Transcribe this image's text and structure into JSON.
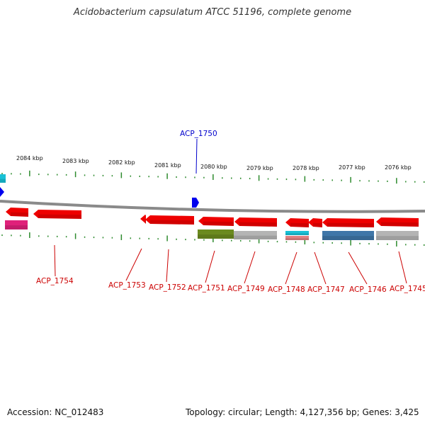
{
  "title": "Acidobacterium capsulatum ATCC 51196, complete genome",
  "footer": {
    "accession": "Accession: NC_012483",
    "summary": "Topology: circular; Length: 4,127,356 bp; Genes: 3,425"
  },
  "colors": {
    "backbone": "#8a8a8a",
    "tick": "#2e8b2e",
    "gene_label_forward": "#0000cc",
    "gene_label_reverse": "#cc0000",
    "arrow_forward": "#0000ee",
    "arrow_reverse": "#ee0000"
  },
  "scale_labels": [
    "2084 kbp",
    "2083 kbp",
    "2082 kbp",
    "2081 kbp",
    "2080 kbp",
    "2079 kbp",
    "2078 kbp",
    "2077 kbp",
    "2076 kbp"
  ],
  "gene_labels": [
    {
      "name": "ACP_1750",
      "strand": "forward"
    },
    {
      "name": "ACP_1754",
      "strand": "reverse"
    },
    {
      "name": "ACP_1753",
      "strand": "reverse"
    },
    {
      "name": "ACP_1752",
      "strand": "reverse"
    },
    {
      "name": "ACP_1751",
      "strand": "reverse"
    },
    {
      "name": "ACP_1749",
      "strand": "reverse"
    },
    {
      "name": "ACP_1748",
      "strand": "reverse"
    },
    {
      "name": "ACP_1747",
      "strand": "reverse"
    },
    {
      "name": "ACP_1746",
      "strand": "reverse"
    },
    {
      "name": "ACP_1745",
      "strand": "reverse"
    }
  ],
  "feature_colors": {
    "cog_cyan": "#19c1d6",
    "cog_magenta": "#e0207a",
    "cog_olive": "#6b8a1f",
    "cog_grey": "#b4b4b4",
    "cog_pink": "#e08080",
    "cog_blue": "#3f76a8"
  }
}
